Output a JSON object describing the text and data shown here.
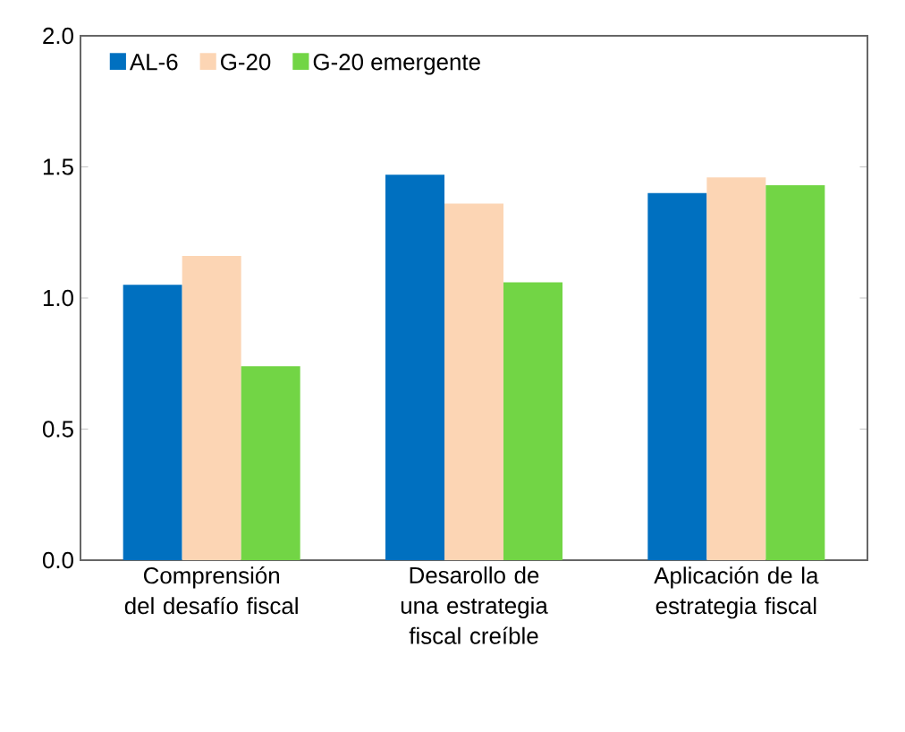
{
  "chart_data": {
    "type": "bar",
    "categories": [
      "Comprensión del desafío fiscal",
      "Desarollo de una estrategia fiscal creíble",
      "Aplicación de la estrategia fiscal"
    ],
    "series": [
      {
        "name": "AL-6",
        "color": "#0070c0",
        "values": [
          1.05,
          1.47,
          1.4
        ]
      },
      {
        "name": "G-20",
        "color": "#fcd5b4",
        "values": [
          1.16,
          1.36,
          1.46
        ]
      },
      {
        "name": "G-20 emergente",
        "color": "#72d545",
        "values": [
          0.74,
          1.06,
          1.43
        ]
      }
    ],
    "ylim": [
      0,
      2
    ],
    "yticks": [
      {
        "value": 0,
        "label": "0.0"
      },
      {
        "value": 0.5,
        "label": "0.5"
      },
      {
        "value": 1,
        "label": "1.0"
      },
      {
        "value": 1.5,
        "label": "1.5"
      },
      {
        "value": 2,
        "label": "2.0"
      }
    ],
    "grid": false,
    "legend": "top left"
  }
}
